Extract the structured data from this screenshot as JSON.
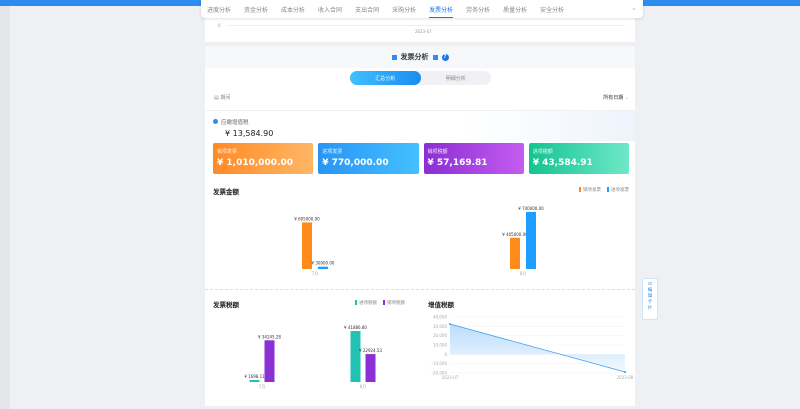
{
  "tabs": {
    "items": [
      "进度分析",
      "资金分析",
      "成本分析",
      "收入合同",
      "支出合同",
      "采购分析",
      "发票分析",
      "劳务分析",
      "质量分析",
      "安全分析"
    ],
    "active": 6
  },
  "prev_chart": {
    "y_zero": "0",
    "x_label": "2023-07"
  },
  "page": {
    "title": "发票分析",
    "help": "?"
  },
  "segment": {
    "summary": "汇总分析",
    "detail": "明细分析"
  },
  "filter": {
    "label": "期间",
    "date": "所有日期"
  },
  "vat_payable": {
    "label": "应缴增值税",
    "value": "¥ 13,584.90"
  },
  "cards": [
    {
      "title": "销项发票",
      "value": "¥ 1,010,000.00",
      "color": "#ff8c2a"
    },
    {
      "title": "进项发票",
      "value": "¥ 770,000.00",
      "color": "#2a9df4"
    },
    {
      "title": "销项税额",
      "value": "¥ 57,169.81",
      "color": "#9b3fe0"
    },
    {
      "title": "进项税额",
      "value": "¥ 43,584.91",
      "color": "#1cc9a0"
    }
  ],
  "float_button": "编辑卡片",
  "chart_data": [
    {
      "type": "bar",
      "title": "发票金额",
      "categories": [
        "7月",
        "8月"
      ],
      "series": [
        {
          "name": "销项发票",
          "values": [
            605000.0,
            405000.0
          ],
          "labels": [
            "¥ 605000.00",
            "¥ 405000.00"
          ],
          "color": "#ff8c1a"
        },
        {
          "name": "进项发票",
          "values": [
            30000.0,
            740000.0
          ],
          "labels": [
            "¥ 30000.00",
            "¥ 740000.00"
          ],
          "color": "#1e9fff"
        }
      ]
    },
    {
      "type": "bar",
      "title": "发票税额",
      "categories": [
        "7月",
        "8月"
      ],
      "series": [
        {
          "name": "进项税额",
          "values": [
            1698.11,
            41886.8
          ],
          "labels": [
            "¥ 1698.11",
            "¥ 41886.80"
          ],
          "color": "#22c1b4"
        },
        {
          "name": "销项税额",
          "values": [
            34245.28,
            22924.53
          ],
          "labels": [
            "¥ 34245.28",
            "¥ 22924.53"
          ],
          "color": "#8b2fd6"
        }
      ]
    },
    {
      "type": "area",
      "title": "增值税额",
      "x": [
        "2023-07",
        "2023-08"
      ],
      "values": [
        32547.17,
        -18962.27
      ],
      "ylim": [
        -20000,
        40000
      ],
      "yticks": [
        "40,000",
        "30,000",
        "20,000",
        "10,000",
        "0",
        "-10,000",
        "-20,000"
      ],
      "color": "#3a9ff5",
      "grid": true
    }
  ]
}
